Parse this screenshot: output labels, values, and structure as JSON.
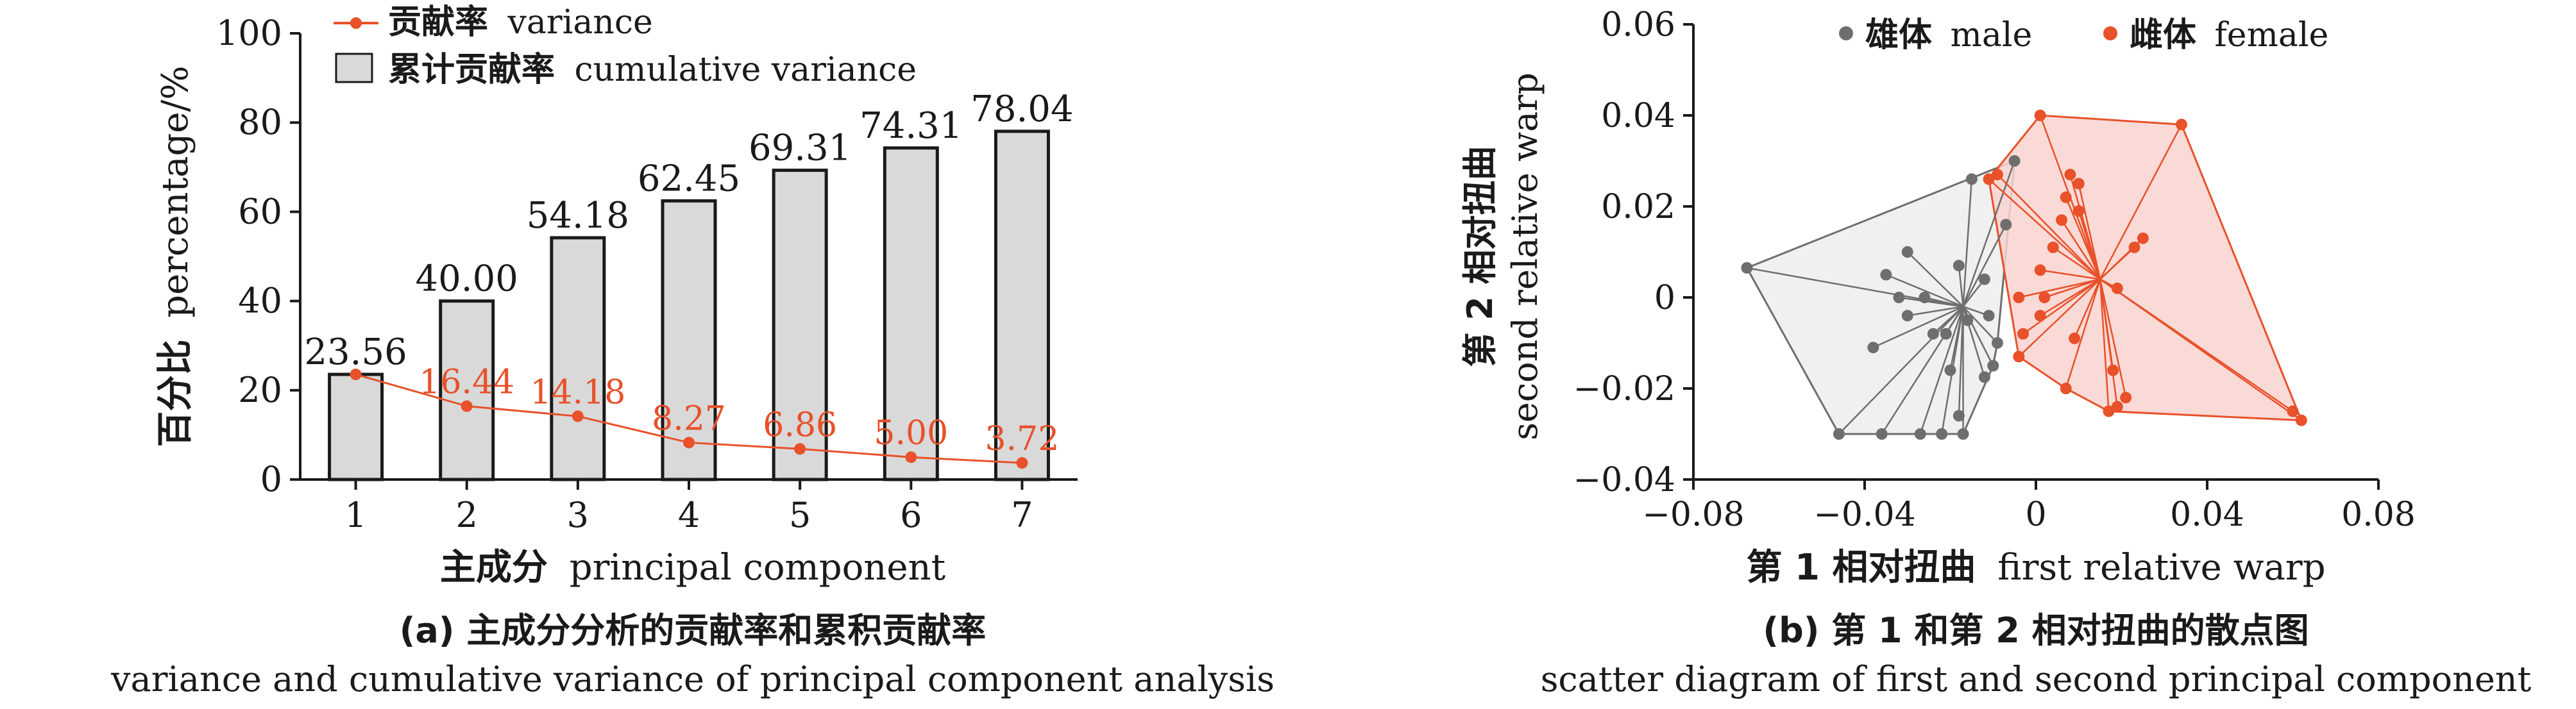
{
  "chart_data": [
    {
      "type": "bar",
      "panel_caption_zh": "(a) 主成分分析的贡献率和累积贡献率",
      "panel_caption_en": "variance and cumulative variance of principal component analysis",
      "xlabel_zh": "主成分",
      "xlabel_en": "principal component",
      "ylabel_zh": "百分比",
      "ylabel_en": "percentage/%",
      "categories": [
        "1",
        "2",
        "3",
        "4",
        "5",
        "6",
        "7"
      ],
      "ylim": [
        0,
        100
      ],
      "yticks": [
        "0",
        "20",
        "40",
        "60",
        "80",
        "100"
      ],
      "legend_placement": "top-left",
      "series": [
        {
          "name_zh": "累计贡献率",
          "name_en": "cumulative variance",
          "kind": "bar",
          "color": "#d9d9d9",
          "values": [
            23.56,
            40.0,
            54.18,
            62.45,
            69.31,
            74.31,
            78.04
          ],
          "labels": [
            "23.56",
            "40.00",
            "54.18",
            "62.45",
            "69.31",
            "74.31",
            "78.04"
          ]
        },
        {
          "name_zh": "贡献率",
          "name_en": "variance",
          "kind": "line",
          "color": "#e8512a",
          "values": [
            23.56,
            16.44,
            14.18,
            8.27,
            6.86,
            5.0,
            3.72
          ],
          "labels": [
            "",
            "16.44",
            "14.18",
            "8.27",
            "6.86",
            "5.00",
            "3.72"
          ]
        }
      ]
    },
    {
      "type": "scatter",
      "panel_caption_zh": "(b) 第 1 和第 2 相对扭曲的散点图",
      "panel_caption_en": "scatter diagram of first and second principal component",
      "xlabel_zh": "第 1 相对扭曲",
      "xlabel_en": "first relative warp",
      "ylabel_zh": "第 2 相对扭曲",
      "ylabel_en": "second relative warp",
      "xlim": [
        -0.08,
        0.08
      ],
      "ylim": [
        -0.04,
        0.06
      ],
      "xticks": [
        "−0.08",
        "−0.04",
        "0",
        "0.04",
        "0.08"
      ],
      "yticks": [
        "−0.04",
        "−0.02",
        "0",
        "0.02",
        "0.04",
        "0.06"
      ],
      "legend_placement": "top",
      "series": [
        {
          "name_zh": "雄体",
          "name_en": "male",
          "color": "#6e6e6e",
          "hull_color": "#f0f0f0",
          "centroid": [
            -0.017,
            -0.002
          ],
          "points": [
            [
              -0.0675,
              0.0065
            ],
            [
              -0.046,
              -0.03
            ],
            [
              -0.036,
              -0.03
            ],
            [
              -0.027,
              -0.03
            ],
            [
              -0.022,
              -0.03
            ],
            [
              -0.017,
              -0.03
            ],
            [
              -0.012,
              -0.0175
            ],
            [
              -0.01,
              -0.015
            ],
            [
              -0.007,
              0.016
            ],
            [
              -0.005,
              0.03
            ],
            [
              -0.015,
              0.026
            ],
            [
              -0.03,
              0.01
            ],
            [
              -0.035,
              0.005
            ],
            [
              -0.032,
              0.0
            ],
            [
              -0.038,
              -0.011
            ],
            [
              -0.026,
              0.0
            ],
            [
              -0.03,
              -0.004
            ],
            [
              -0.024,
              -0.008
            ],
            [
              -0.021,
              -0.008
            ],
            [
              -0.018,
              0.007
            ],
            [
              -0.012,
              0.004
            ],
            [
              -0.016,
              -0.005
            ],
            [
              -0.011,
              -0.004
            ],
            [
              -0.02,
              -0.016
            ],
            [
              -0.018,
              -0.026
            ],
            [
              -0.009,
              -0.01
            ]
          ]
        },
        {
          "name_zh": "雌体",
          "name_en": "female",
          "color": "#e8512a",
          "hull_color": "#f9d3cf",
          "centroid": [
            0.015,
            0.004
          ],
          "points": [
            [
              0.001,
              0.04
            ],
            [
              0.034,
              0.038
            ],
            [
              -0.009,
              0.027
            ],
            [
              -0.011,
              0.026
            ],
            [
              0.007,
              0.022
            ],
            [
              0.008,
              0.027
            ],
            [
              0.01,
              0.025
            ],
            [
              0.01,
              0.019
            ],
            [
              0.006,
              0.017
            ],
            [
              0.004,
              0.011
            ],
            [
              0.001,
              0.006
            ],
            [
              0.002,
              0.0
            ],
            [
              -0.004,
              0.0
            ],
            [
              -0.003,
              -0.008
            ],
            [
              0.001,
              -0.004
            ],
            [
              -0.004,
              -0.013
            ],
            [
              0.009,
              -0.009
            ],
            [
              0.007,
              -0.02
            ],
            [
              0.018,
              -0.016
            ],
            [
              0.019,
              -0.024
            ],
            [
              0.021,
              -0.022
            ],
            [
              0.017,
              -0.025
            ],
            [
              0.023,
              0.011
            ],
            [
              0.025,
              0.013
            ],
            [
              0.019,
              0.002
            ],
            [
              0.06,
              -0.025
            ],
            [
              0.062,
              -0.027
            ]
          ]
        }
      ]
    }
  ]
}
